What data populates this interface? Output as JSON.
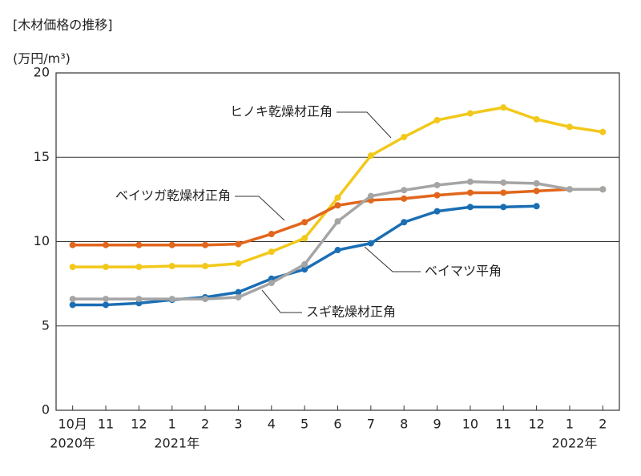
{
  "chart_data": {
    "type": "line",
    "title": "[木材価格の推移]",
    "ylabel": "(万円/m³)",
    "categories": [
      "10月",
      "11",
      "12",
      "1",
      "2",
      "3",
      "4",
      "5",
      "6",
      "7",
      "8",
      "9",
      "10",
      "11",
      "12",
      "1",
      "2"
    ],
    "year_labels": [
      "2020年",
      null,
      null,
      "2021年",
      null,
      null,
      null,
      null,
      null,
      null,
      null,
      null,
      null,
      null,
      null,
      "2022年",
      null
    ],
    "ylim": [
      0,
      20
    ],
    "yticks": [
      0,
      5,
      10,
      15,
      20
    ],
    "grid": true,
    "series": [
      {
        "name": "ヒノキ乾燥材正角",
        "color": "#f2c81a",
        "values": [
          8.5,
          8.5,
          8.5,
          8.55,
          8.55,
          8.7,
          9.4,
          10.2,
          12.6,
          15.1,
          16.2,
          17.2,
          17.6,
          17.95,
          17.25,
          16.8,
          16.5
        ]
      },
      {
        "name": "ベイツガ乾燥材正角",
        "color": "#e2661c",
        "values": [
          9.8,
          9.8,
          9.8,
          9.8,
          9.8,
          9.85,
          10.45,
          11.15,
          12.15,
          12.45,
          12.55,
          12.75,
          12.9,
          12.9,
          13.0,
          13.1,
          13.1
        ]
      },
      {
        "name": "ベイマツ平角",
        "color": "#1a6eb4",
        "values": [
          6.25,
          6.25,
          6.35,
          6.55,
          6.7,
          7.0,
          7.8,
          8.35,
          9.5,
          9.9,
          11.15,
          11.8,
          12.05,
          12.05,
          12.1,
          null,
          null
        ]
      },
      {
        "name": "スギ乾燥材正角",
        "color": "#a5a5a5",
        "values": [
          6.6,
          6.6,
          6.6,
          6.6,
          6.6,
          6.7,
          7.55,
          8.65,
          11.2,
          12.7,
          13.05,
          13.35,
          13.55,
          13.5,
          13.45,
          13.1,
          13.1
        ]
      }
    ]
  }
}
